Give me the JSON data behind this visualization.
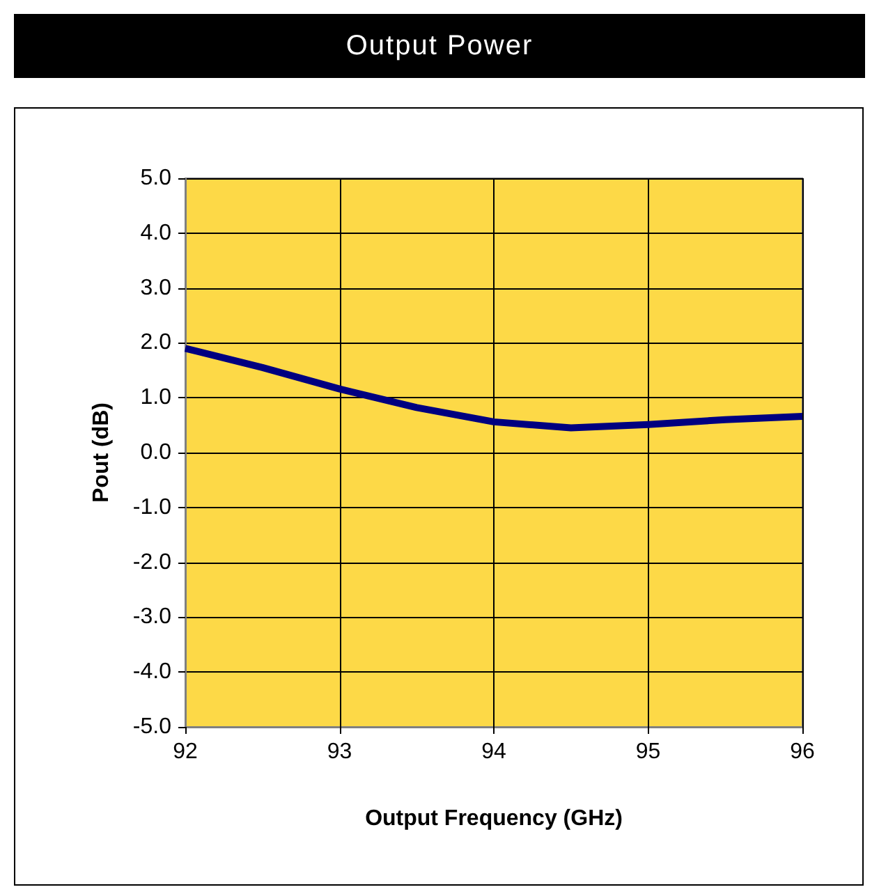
{
  "chart_data": {
    "type": "line",
    "title": "Output Power",
    "xlabel": "Output Frequency (GHz)",
    "ylabel": "Pout (dB)",
    "x": [
      92,
      92.5,
      93,
      93.5,
      94,
      94.5,
      95,
      95.5,
      96
    ],
    "series": [
      {
        "color": "#000080",
        "values": [
          1.9,
          1.55,
          1.16,
          0.82,
          0.56,
          0.45,
          0.51,
          0.6,
          0.66
        ]
      }
    ],
    "xlim": [
      92,
      96
    ],
    "xticks": [
      92,
      93,
      94,
      95,
      96
    ],
    "ylim": [
      -5,
      5
    ],
    "yticks": [
      {
        "value": -5,
        "label": "-5.0"
      },
      {
        "value": -4,
        "label": "-4.0"
      },
      {
        "value": -3,
        "label": "-3.0"
      },
      {
        "value": -2,
        "label": "-2.0"
      },
      {
        "value": -1,
        "label": "-1.0"
      },
      {
        "value": 0,
        "label": "0.0"
      },
      {
        "value": 1,
        "label": "1.0"
      },
      {
        "value": 2,
        "label": "2.0"
      },
      {
        "value": 3,
        "label": "3.0"
      },
      {
        "value": 4,
        "label": "4.0"
      },
      {
        "value": 5,
        "label": "5.0"
      }
    ],
    "grid": true,
    "marker": "none",
    "line_style": "solid"
  }
}
